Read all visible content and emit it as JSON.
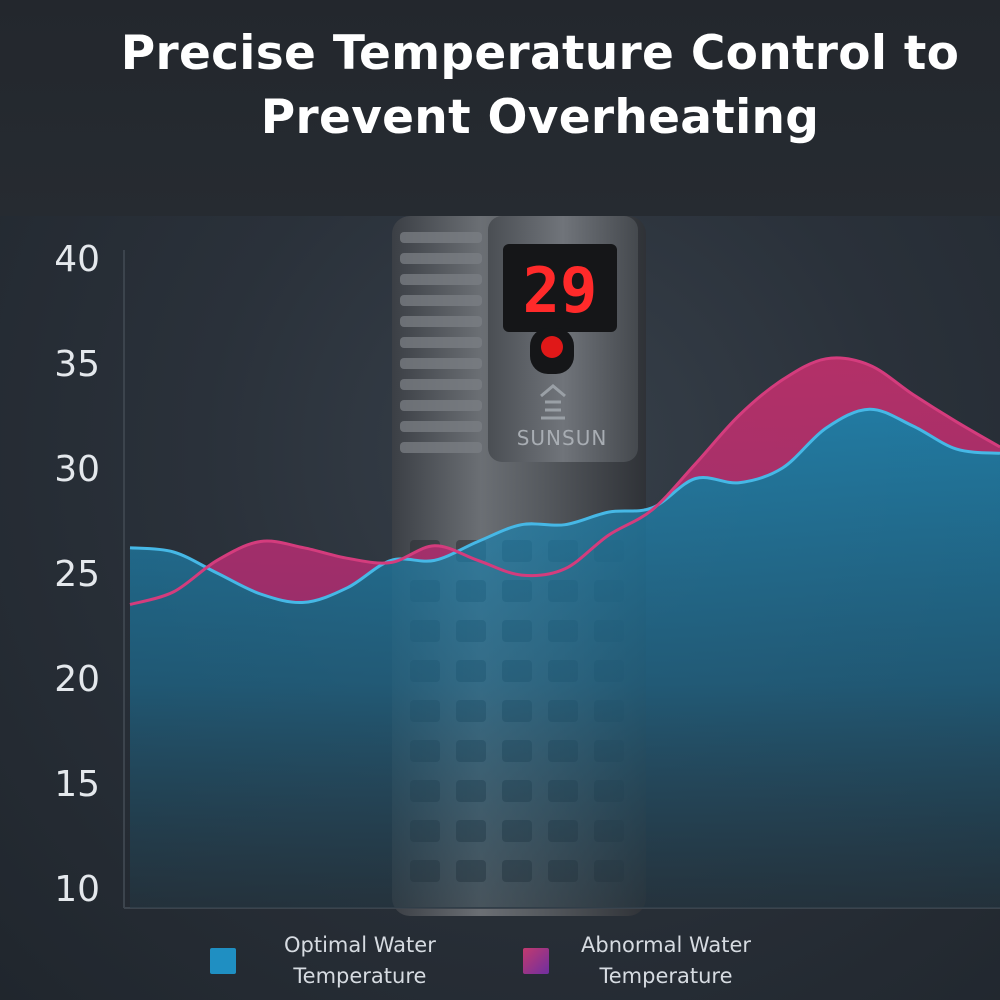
{
  "title": "Precise Temperature Control to\nPrevent Overheating",
  "product": {
    "display_reading": "29",
    "brand": "SUNSUN"
  },
  "colors": {
    "optimal": "#2aa9d6",
    "abnormal": "#c0326f",
    "axis_text": "#e4e8ec"
  },
  "legend": [
    {
      "label": "Optimal Water\nTemperature",
      "color": "#1f8fc2"
    },
    {
      "label": "Abnormal Water\nTemperature",
      "color": "#9a2f86"
    }
  ],
  "chart_data": {
    "type": "area",
    "title": "",
    "xlabel": "",
    "ylabel": "",
    "ylim": [
      10,
      40
    ],
    "yticks": [
      40,
      35,
      30,
      25,
      20,
      15,
      10
    ],
    "xlim": [
      0,
      20
    ],
    "grid": false,
    "legend_position": "bottom",
    "series": [
      {
        "name": "Optimal Water Temperature",
        "x": [
          0,
          1,
          2,
          3,
          4,
          5,
          6,
          7,
          8,
          9,
          10,
          11,
          12,
          13,
          14,
          15,
          16,
          17,
          18,
          19,
          20
        ],
        "y": [
          26.2,
          26.0,
          25.0,
          24.0,
          23.6,
          24.3,
          25.6,
          25.6,
          26.5,
          27.3,
          27.3,
          27.9,
          28.1,
          29.5,
          29.3,
          30.0,
          31.9,
          32.8,
          32.0,
          30.9,
          30.7
        ]
      },
      {
        "name": "Abnormal Water Temperature",
        "x": [
          0,
          1,
          2,
          3,
          4,
          5,
          6,
          7,
          8,
          9,
          10,
          11,
          12,
          13,
          14,
          15,
          16,
          17,
          18,
          19,
          20
        ],
        "y": [
          23.5,
          24.1,
          25.6,
          26.5,
          26.2,
          25.7,
          25.5,
          26.3,
          25.6,
          24.9,
          25.2,
          26.8,
          28.0,
          30.2,
          32.5,
          34.2,
          35.2,
          34.9,
          33.5,
          32.2,
          31.0
        ]
      }
    ]
  }
}
